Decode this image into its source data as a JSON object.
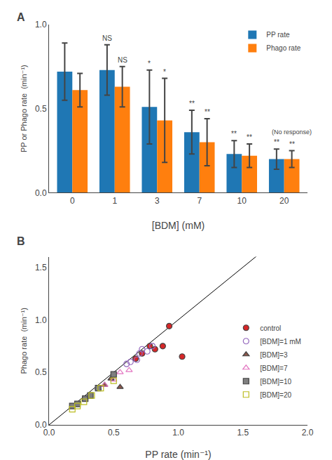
{
  "chart_data": [
    {
      "type": "bar",
      "title": "A",
      "categories": [
        "0",
        "1",
        "3",
        "7",
        "10",
        "20"
      ],
      "series": [
        {
          "name": "PP rate",
          "values": [
            0.72,
            0.73,
            0.51,
            0.36,
            0.23,
            0.2
          ],
          "errors": [
            0.17,
            0.15,
            0.22,
            0.13,
            0.08,
            0.06
          ],
          "sig_labels": [
            null,
            "NS",
            "*",
            "**",
            "**",
            "**"
          ]
        },
        {
          "name": "Phago rate",
          "values": [
            0.61,
            0.63,
            0.43,
            0.3,
            0.22,
            0.2
          ],
          "errors": [
            0.1,
            0.12,
            0.25,
            0.14,
            0.07,
            0.05
          ],
          "sig_labels": [
            null,
            "NS",
            "*",
            "**",
            "**",
            "**"
          ]
        }
      ],
      "annotations": [
        {
          "text": "(No response)",
          "category": "20",
          "series": "Phago rate"
        }
      ],
      "xlabel": "[BDM] (mM)",
      "ylabel": "PP or Phago rate  (min⁻¹)",
      "ylim": [
        0,
        1.0
      ],
      "yticks": [
        {
          "value": 0,
          "label": "0.0"
        },
        0.5,
        {
          "value": 1,
          "label": "1.0"
        }
      ],
      "grid": false,
      "legend": "upper right"
    },
    {
      "type": "scatter",
      "title": "B",
      "series": [
        {
          "name": "control",
          "marker": "circle",
          "x": [
            0.67,
            0.72,
            0.78,
            0.82,
            0.88,
            0.93,
            1.03
          ],
          "values": [
            0.63,
            0.68,
            0.75,
            0.72,
            0.75,
            0.94,
            0.65
          ]
        },
        {
          "name": "[BDM]=1 mM",
          "marker": "circle-open",
          "x": [
            0.6,
            0.63,
            0.68,
            0.7,
            0.72,
            0.76,
            0.8
          ],
          "values": [
            0.58,
            0.6,
            0.62,
            0.68,
            0.72,
            0.7,
            0.75
          ]
        },
        {
          "name": "[BDM]=3",
          "marker": "triangle-up",
          "x": [
            0.38,
            0.43,
            0.48,
            0.55
          ],
          "values": [
            0.35,
            0.38,
            0.44,
            0.36
          ]
        },
        {
          "name": "[BDM]=7",
          "marker": "triangle-up-open",
          "x": [
            0.43,
            0.5,
            0.55,
            0.62
          ],
          "values": [
            0.38,
            0.43,
            0.5,
            0.52
          ]
        },
        {
          "name": "[BDM]=10",
          "marker": "square",
          "x": [
            0.18,
            0.22,
            0.28,
            0.32,
            0.38,
            0.5
          ],
          "values": [
            0.18,
            0.2,
            0.25,
            0.28,
            0.35,
            0.48
          ]
        },
        {
          "name": "[BDM]=20",
          "marker": "square-open",
          "x": [
            0.18,
            0.22,
            0.27,
            0.33,
            0.4,
            0.5
          ],
          "values": [
            0.15,
            0.18,
            0.22,
            0.28,
            0.35,
            0.42
          ]
        }
      ],
      "reference_line": {
        "x": [
          0,
          2.0
        ],
        "y": [
          0,
          2.0
        ]
      },
      "xlabel": "PP rate (min⁻¹)",
      "ylabel": "Phago rate  (min⁻¹)",
      "xlim": [
        0,
        2.0
      ],
      "ylim": [
        0,
        1.6
      ],
      "xticks": [
        {
          "value": 0,
          "label": "0.0"
        },
        0.5,
        {
          "value": 1.0,
          "label": "1.0"
        },
        1.5,
        {
          "value": 2.0,
          "label": "2.0"
        }
      ],
      "yticks": [
        {
          "value": 0,
          "label": "0.0"
        },
        0.5,
        {
          "value": 1.0,
          "label": "1.0"
        },
        1.5
      ],
      "grid": false,
      "legend": "lower right"
    }
  ]
}
